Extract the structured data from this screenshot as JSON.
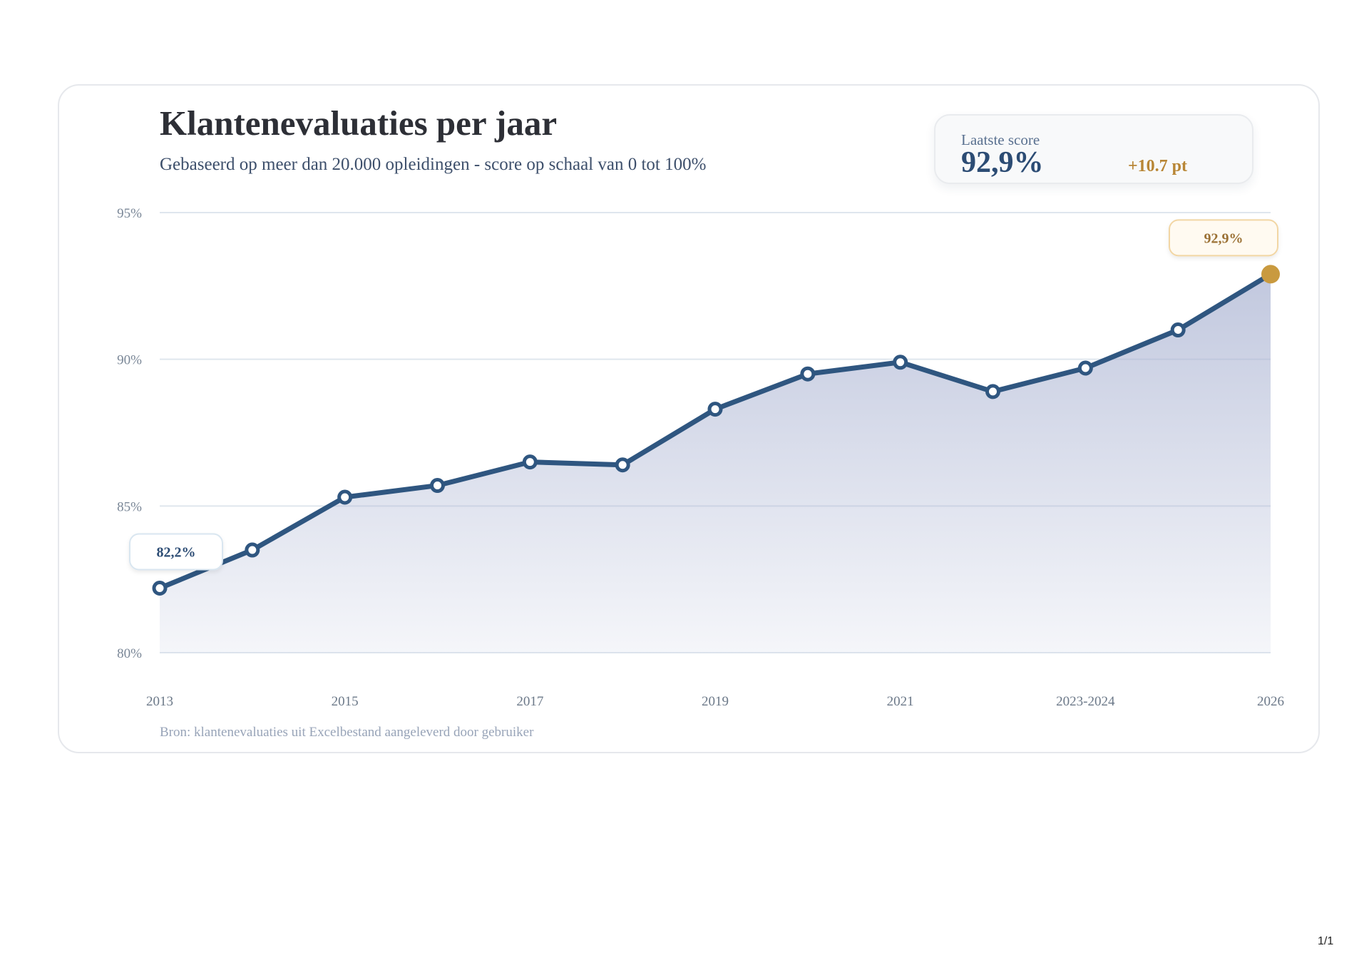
{
  "chart_data": {
    "type": "line",
    "title": "Klantenevaluaties per jaar",
    "subtitle": "Gebaseerd op meer dan 20.000 opleidingen - score op schaal van 0 tot 100%",
    "source": "Bron: klantenevaluaties uit Excelbestand aangeleverd door gebruiker",
    "x_tick_labels": [
      "2013",
      "2015",
      "2017",
      "2019",
      "2021",
      "2023-2024",
      "2026"
    ],
    "x_tick_index": [
      0,
      2,
      4,
      6,
      8,
      10,
      12
    ],
    "y_tick_labels": [
      "80%",
      "85%",
      "90%",
      "95%"
    ],
    "y_ticks": [
      80,
      85,
      90,
      95
    ],
    "ylim": [
      80,
      95
    ],
    "grid": true,
    "series": [
      {
        "values": [
          82.2,
          83.5,
          85.3,
          85.7,
          86.5,
          86.4,
          88.3,
          89.5,
          89.9,
          88.9,
          89.7,
          91.0,
          92.9
        ],
        "color": "#2f5680",
        "fill_color": "#aab3d2",
        "highlight_color": "#c99a3f"
      }
    ],
    "annotations": {
      "first": "82,2%",
      "last": "92,9%"
    }
  },
  "kpi": {
    "label": "Laatste score",
    "value": "92,9%",
    "delta": "+10.7 pt"
  },
  "page": {
    "number": "1/1"
  }
}
